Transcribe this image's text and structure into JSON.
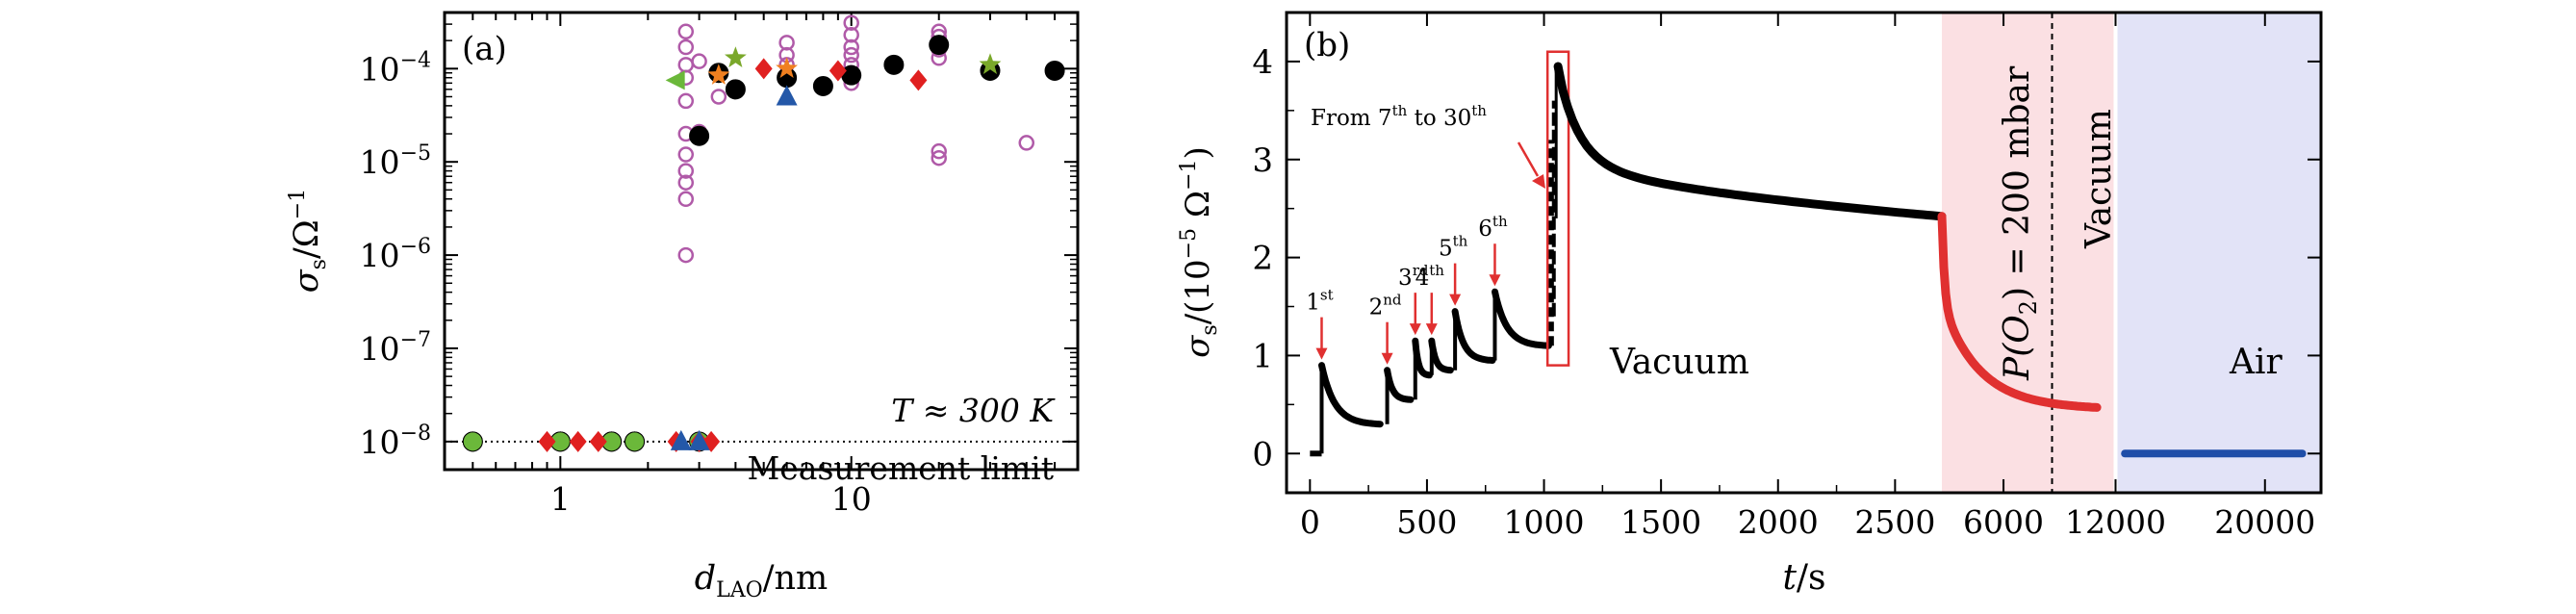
{
  "chart_data": [
    {
      "panel": "(a)",
      "type": "scatter",
      "title": "",
      "xlabel_main": "d",
      "xlabel_sub": "LAO",
      "xlabel_unit": "/nm",
      "ylabel_main": "σ",
      "ylabel_sub": "s",
      "ylabel_unit": "/Ω",
      "ylabel_exp": "−1",
      "x_scale": "log",
      "y_scale": "log",
      "xlim": [
        0.4,
        60
      ],
      "ylim": [
        5e-09,
        0.0004
      ],
      "x_ticks": [
        {
          "value": 1,
          "label": "1"
        },
        {
          "value": 10,
          "label": "10"
        }
      ],
      "y_ticks": [
        {
          "value": 1e-08,
          "base": "10",
          "exp": "−8"
        },
        {
          "value": 1e-07,
          "base": "10",
          "exp": "−7"
        },
        {
          "value": 1e-06,
          "base": "10",
          "exp": "−6"
        },
        {
          "value": 1e-05,
          "base": "10",
          "exp": "−5"
        },
        {
          "value": 0.0001,
          "base": "10",
          "exp": "−4"
        }
      ],
      "temperature_label": "T ≈ 300 K",
      "limit_label": "Measurement limit",
      "limit_value": 1e-08,
      "series": [
        {
          "name": "open circles",
          "marker": "open-circle",
          "color": "#b05aa8",
          "points": [
            [
              2.7,
              1e-06
            ],
            [
              2.7,
              4e-06
            ],
            [
              2.7,
              6e-06
            ],
            [
              2.7,
              8e-06
            ],
            [
              2.7,
              1.2e-05
            ],
            [
              2.7,
              2e-05
            ],
            [
              2.7,
              4.5e-05
            ],
            [
              2.7,
              8e-05
            ],
            [
              2.7,
              0.00011
            ],
            [
              2.7,
              0.00017
            ],
            [
              2.7,
              0.00025
            ],
            [
              3.0,
              2.1e-05
            ],
            [
              3.0,
              0.00012
            ],
            [
              3.5,
              5e-05
            ],
            [
              6,
              0.00011
            ],
            [
              6,
              0.00014
            ],
            [
              6,
              0.00019
            ],
            [
              6,
              8e-05
            ],
            [
              10,
              7e-05
            ],
            [
              10,
              9e-05
            ],
            [
              10,
              0.00011
            ],
            [
              10,
              0.00014
            ],
            [
              10,
              0.00017
            ],
            [
              10,
              0.00023
            ],
            [
              10,
              0.00031
            ],
            [
              20,
              1.1e-05
            ],
            [
              20,
              1.3e-05
            ],
            [
              20,
              0.00013
            ],
            [
              20,
              0.00016
            ],
            [
              20,
              0.00022
            ],
            [
              20,
              0.00025
            ],
            [
              40,
              1.6e-05
            ]
          ]
        },
        {
          "name": "black filled circles",
          "marker": "filled-circle",
          "color": "#000000",
          "points": [
            [
              0.5,
              1e-08
            ],
            [
              1.0,
              1e-08
            ],
            [
              1.5,
              1e-08
            ],
            [
              1.8,
              1e-08
            ],
            [
              3.0,
              1.9e-05
            ],
            [
              3.5,
              9e-05
            ],
            [
              4,
              6e-05
            ],
            [
              6,
              8e-05
            ],
            [
              8,
              6.5e-05
            ],
            [
              10,
              8.5e-05
            ],
            [
              14,
              0.00011
            ],
            [
              20,
              0.00018
            ],
            [
              30,
              9.5e-05
            ],
            [
              50,
              9.5e-05
            ]
          ]
        },
        {
          "name": "green filled circles",
          "marker": "filled-circle",
          "color": "#6bb83a",
          "points": [
            [
              0.5,
              1e-08
            ],
            [
              1.0,
              1e-08
            ],
            [
              1.5,
              1e-08
            ],
            [
              1.8,
              1e-08
            ],
            [
              3.0,
              1e-08
            ]
          ]
        },
        {
          "name": "red diamonds",
          "marker": "diamond",
          "color": "#e02020",
          "points": [
            [
              0.9,
              1e-08
            ],
            [
              1.15,
              1e-08
            ],
            [
              1.35,
              1e-08
            ],
            [
              2.5,
              1e-08
            ],
            [
              3.0,
              1e-08
            ],
            [
              3.3,
              1e-08
            ],
            [
              5,
              0.0001
            ],
            [
              9,
              9.5e-05
            ],
            [
              17,
              7.5e-05
            ]
          ]
        },
        {
          "name": "blue triangles",
          "marker": "triangle-up",
          "color": "#2458a8",
          "points": [
            [
              2.6,
              1e-08
            ],
            [
              3.0,
              1e-08
            ],
            [
              6,
              5e-05
            ]
          ]
        },
        {
          "name": "orange stars",
          "marker": "star",
          "color": "#f08020",
          "points": [
            [
              3.5,
              8.5e-05
            ],
            [
              6,
              0.0001
            ]
          ]
        },
        {
          "name": "green stars",
          "marker": "star",
          "color": "#7aa82a",
          "points": [
            [
              4,
              0.00013
            ],
            [
              30,
              0.00011
            ]
          ]
        },
        {
          "name": "green left triangles",
          "marker": "triangle-left",
          "color": "#6bb83a",
          "points": [
            [
              2.5,
              7.5e-05
            ]
          ]
        }
      ]
    },
    {
      "panel": "(b)",
      "type": "line",
      "title": "",
      "xlabel_main": "t",
      "xlabel_unit": "/s",
      "ylabel_main": "σ",
      "ylabel_sub": "s",
      "ylabel_unit": "/(10",
      "ylabel_exp1": "−5",
      "ylabel_unit2": " Ω",
      "ylabel_exp2": "−1",
      "ylabel_close": ")",
      "ylim": [
        -0.4,
        4.5
      ],
      "x_segments": [
        {
          "name": "linear",
          "range": [
            -100,
            2700
          ]
        },
        {
          "name": "compressed",
          "range": [
            2700,
            23000
          ]
        }
      ],
      "x_ticks": [
        {
          "value": 0,
          "label": "0"
        },
        {
          "value": 500,
          "label": "500"
        },
        {
          "value": 1000,
          "label": "1000"
        },
        {
          "value": 1500,
          "label": "1500"
        },
        {
          "value": 2000,
          "label": "2000"
        },
        {
          "value": 2500,
          "label": "2500"
        },
        {
          "value": 6000,
          "label": "6000"
        },
        {
          "value": 12000,
          "label": "12000"
        },
        {
          "value": 20000,
          "label": "20000"
        }
      ],
      "y_ticks": [
        {
          "value": 0,
          "label": "0"
        },
        {
          "value": 1,
          "label": "1"
        },
        {
          "value": 2,
          "label": "2"
        },
        {
          "value": 3,
          "label": "3"
        },
        {
          "value": 4,
          "label": "4"
        }
      ],
      "pulses": [
        {
          "label": "1",
          "sup": "st",
          "t": 50,
          "peak": 0.9,
          "end_t": 300,
          "end_v": 0.3
        },
        {
          "label": "2",
          "sup": "nd",
          "t": 330,
          "peak": 0.85,
          "end_t": 430,
          "end_v": 0.55
        },
        {
          "label": "3",
          "sup": "rd",
          "t": 450,
          "peak": 1.15,
          "end_t": 510,
          "end_v": 0.8
        },
        {
          "label": "4",
          "sup": "th",
          "t": 520,
          "peak": 1.15,
          "end_t": 600,
          "end_v": 0.85
        },
        {
          "label": "5",
          "sup": "th",
          "t": 620,
          "peak": 1.45,
          "end_t": 780,
          "end_v": 0.95
        },
        {
          "label": "6",
          "sup": "th",
          "t": 790,
          "peak": 1.65,
          "end_t": 1020,
          "end_v": 1.1
        }
      ],
      "pulse_range_label": "From 7",
      "pulse_range_sup1": "th",
      "pulse_range_mid": " to 30",
      "pulse_range_sup2": "th",
      "big_peak": {
        "t": 1060,
        "v": 3.95
      },
      "vacuum_decay_end": {
        "t": 2700,
        "v": 2.42
      },
      "oxygen_decay": {
        "t_start": 2700,
        "v_start": 2.42,
        "t_end": 11000,
        "v_end": 0.47
      },
      "air_level": {
        "t_start": 12500,
        "t_end": 22000,
        "v": 0.0
      },
      "regions": [
        {
          "label": "Vacuum",
          "kind": "text"
        },
        {
          "label": "P(O",
          "sub": "2",
          "rest": ") = 200 mbar",
          "color": "#fbe0e3",
          "range": [
            2700,
            8600
          ]
        },
        {
          "label": "Vacuum",
          "color": "#fbe0e3",
          "range": [
            8600,
            12000
          ]
        },
        {
          "label": "Air",
          "color": "#e2e3f7",
          "range": [
            12000,
            23000
          ]
        }
      ],
      "colors": {
        "vacuum_curve": "#000000",
        "oxygen_curve": "#e03030",
        "air_curve": "#1f4ea8",
        "arrow": "#e03030",
        "frame": "#e03030"
      }
    }
  ]
}
